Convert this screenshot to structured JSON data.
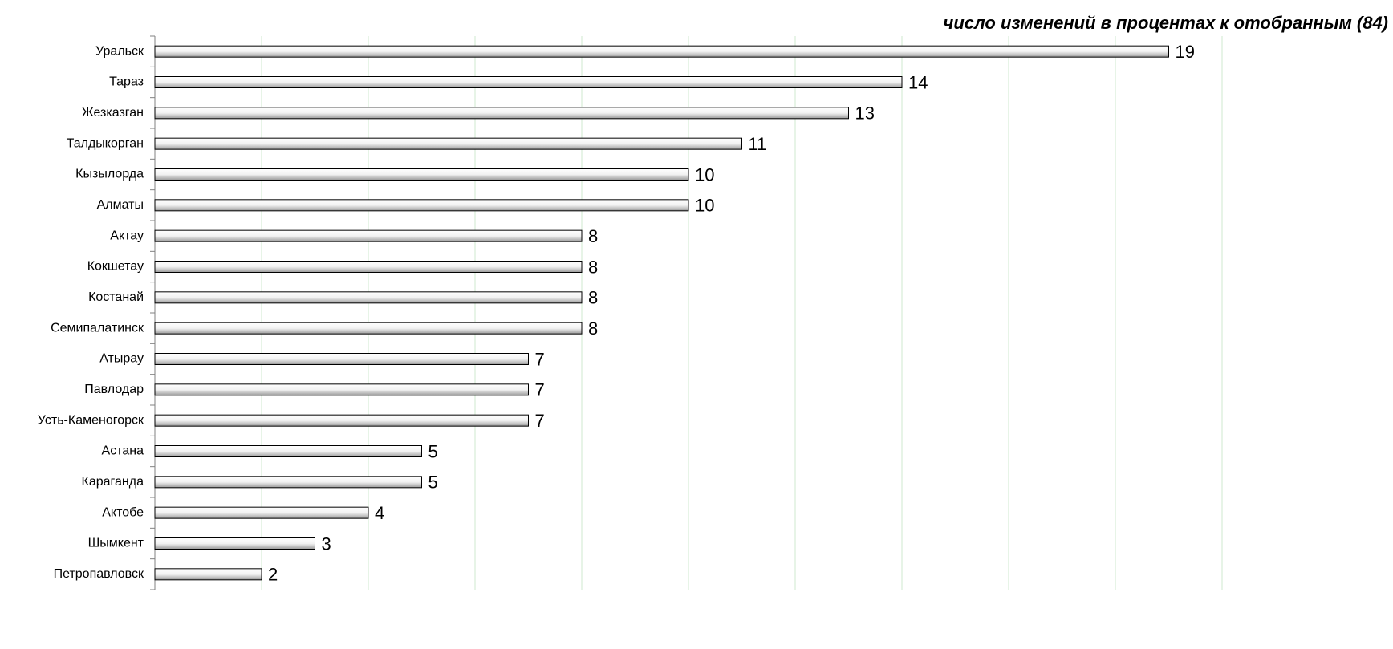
{
  "chart_data": {
    "type": "bar",
    "orientation": "horizontal",
    "subtitle": "число изменений в процентах к отобранным (84)",
    "categories": [
      "Уральск",
      "Тараз",
      "Жезказган",
      "Талдыкорган",
      "Кызылорда",
      "Алматы",
      "Актау",
      "Кокшетау",
      "Костанай",
      "Семипалатинск",
      "Атырау",
      "Павлодар",
      "Усть-Каменогорск",
      "Астана",
      "Караганда",
      "Актобе",
      "Шымкент",
      "Петропавловск"
    ],
    "values": [
      19,
      14,
      13,
      11,
      10,
      10,
      8,
      8,
      8,
      8,
      7,
      7,
      7,
      5,
      5,
      4,
      3,
      2
    ],
    "color": "#d9d9d9",
    "xlim": [
      0,
      20
    ],
    "xticks": [
      0,
      2,
      4,
      6,
      8,
      10,
      12,
      14,
      16,
      18,
      20
    ],
    "grid": true
  }
}
